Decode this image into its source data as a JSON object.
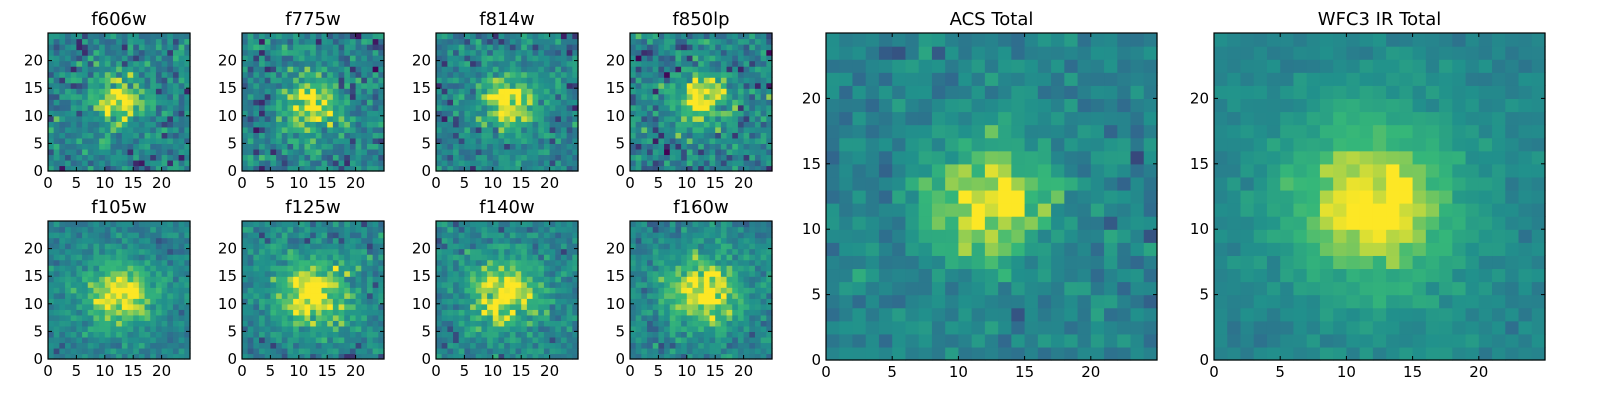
{
  "chart_data": [
    {
      "type": "heatmap",
      "title": "f606w",
      "xlim": [
        0,
        25
      ],
      "ylim": [
        0,
        25
      ],
      "xticks": [
        0,
        5,
        10,
        15,
        20
      ],
      "yticks": [
        0,
        5,
        10,
        15,
        20
      ],
      "peak": [
        12.5,
        12.5
      ],
      "spread": 3.2,
      "noise": 0.55,
      "seed": 11
    },
    {
      "type": "heatmap",
      "title": "f775w",
      "xlim": [
        0,
        25
      ],
      "ylim": [
        0,
        25
      ],
      "xticks": [
        0,
        5,
        10,
        15,
        20
      ],
      "yticks": [
        0,
        5,
        10,
        15,
        20
      ],
      "peak": [
        12.5,
        12.5
      ],
      "spread": 3.4,
      "noise": 0.55,
      "seed": 12
    },
    {
      "type": "heatmap",
      "title": "f814w",
      "xlim": [
        0,
        25
      ],
      "ylim": [
        0,
        25
      ],
      "xticks": [
        0,
        5,
        10,
        15,
        20
      ],
      "yticks": [
        0,
        5,
        10,
        15,
        20
      ],
      "peak": [
        12.5,
        12.5
      ],
      "spread": 3.4,
      "noise": 0.5,
      "seed": 13
    },
    {
      "type": "heatmap",
      "title": "f850lp",
      "xlim": [
        0,
        25
      ],
      "ylim": [
        0,
        25
      ],
      "xticks": [
        0,
        5,
        10,
        15,
        20
      ],
      "yticks": [
        0,
        5,
        10,
        15,
        20
      ],
      "peak": [
        12.5,
        13
      ],
      "spread": 3.2,
      "noise": 0.6,
      "seed": 14
    },
    {
      "type": "heatmap",
      "title": "f105w",
      "xlim": [
        0,
        25
      ],
      "ylim": [
        0,
        25
      ],
      "xticks": [
        0,
        5,
        10,
        15,
        20
      ],
      "yticks": [
        0,
        5,
        10,
        15,
        20
      ],
      "peak": [
        12.5,
        12
      ],
      "spread": 4.2,
      "noise": 0.35,
      "seed": 15
    },
    {
      "type": "heatmap",
      "title": "f125w",
      "xlim": [
        0,
        25
      ],
      "ylim": [
        0,
        25
      ],
      "xticks": [
        0,
        5,
        10,
        15,
        20
      ],
      "yticks": [
        0,
        5,
        10,
        15,
        20
      ],
      "peak": [
        12.5,
        12
      ],
      "spread": 4.6,
      "noise": 0.45,
      "seed": 16
    },
    {
      "type": "heatmap",
      "title": "f140w",
      "xlim": [
        0,
        25
      ],
      "ylim": [
        0,
        25
      ],
      "xticks": [
        0,
        5,
        10,
        15,
        20
      ],
      "yticks": [
        0,
        5,
        10,
        15,
        20
      ],
      "peak": [
        12,
        12
      ],
      "spread": 4.4,
      "noise": 0.45,
      "seed": 17
    },
    {
      "type": "heatmap",
      "title": "f160w",
      "xlim": [
        0,
        25
      ],
      "ylim": [
        0,
        25
      ],
      "xticks": [
        0,
        5,
        10,
        15,
        20
      ],
      "yticks": [
        0,
        5,
        10,
        15,
        20
      ],
      "peak": [
        13,
        12.5
      ],
      "spread": 4.6,
      "noise": 0.4,
      "seed": 18
    },
    {
      "type": "heatmap",
      "title": "ACS Total",
      "xlim": [
        0,
        25
      ],
      "ylim": [
        0,
        25
      ],
      "xticks": [
        0,
        5,
        10,
        15,
        20
      ],
      "yticks": [
        0,
        5,
        10,
        15,
        20
      ],
      "peak": [
        12,
        12
      ],
      "spread": 3.3,
      "noise": 0.35,
      "seed": 19
    },
    {
      "type": "heatmap",
      "title": "WFC3 IR Total",
      "xlim": [
        0,
        25
      ],
      "ylim": [
        0,
        25
      ],
      "xticks": [
        0,
        5,
        10,
        15,
        20
      ],
      "yticks": [
        0,
        5,
        10,
        15,
        20
      ],
      "peak": [
        12,
        12
      ],
      "spread": 4.8,
      "noise": 0.2,
      "seed": 20
    }
  ],
  "colormap": [
    "#440154",
    "#31688e",
    "#21918c",
    "#35b779",
    "#fde725"
  ]
}
